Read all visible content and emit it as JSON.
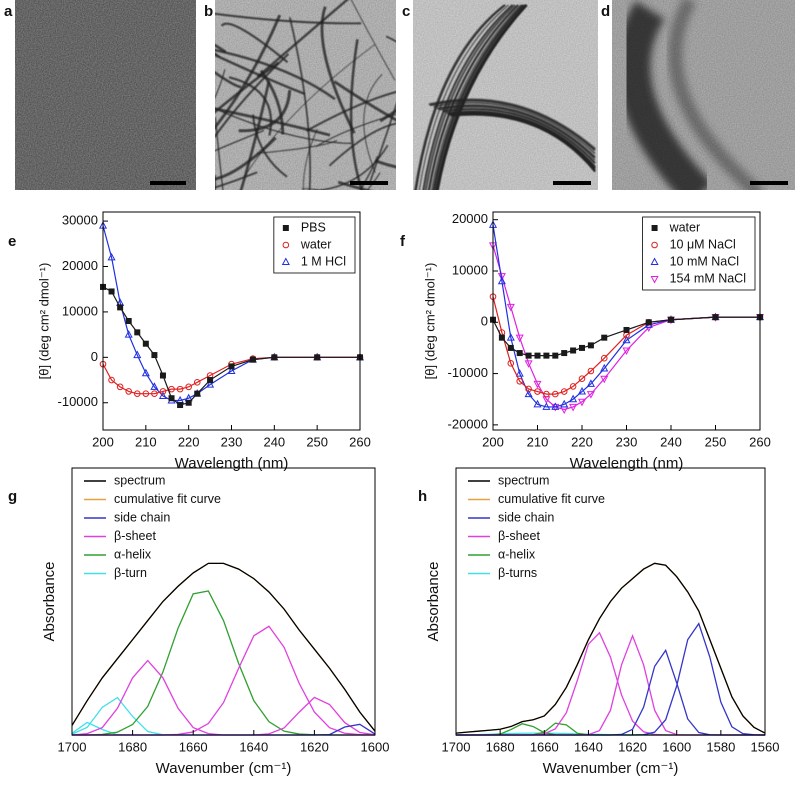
{
  "images": [
    {
      "label": "a"
    },
    {
      "label": "b"
    },
    {
      "label": "c"
    },
    {
      "label": "d"
    }
  ],
  "chart_data": [
    {
      "type": "line",
      "label": "e",
      "xlabel": "Wavelength (nm)",
      "ylabel": "[θ] (deg cm² dmol⁻¹)",
      "x": [
        200,
        202,
        204,
        206,
        208,
        210,
        212,
        214,
        216,
        218,
        220,
        222,
        225,
        230,
        235,
        240,
        250,
        260
      ],
      "series": [
        {
          "name": "PBS",
          "color": "#1a1a1a",
          "marker": "square",
          "values": [
            15500,
            14500,
            11000,
            8000,
            5500,
            3000,
            500,
            -4000,
            -9000,
            -10500,
            -10000,
            -8000,
            -5000,
            -2000,
            -500,
            0,
            0,
            0
          ]
        },
        {
          "name": "water",
          "color": "#e02020",
          "marker": "circle",
          "values": [
            -1500,
            -5000,
            -6500,
            -7500,
            -8000,
            -8000,
            -8000,
            -7500,
            -7000,
            -7000,
            -6500,
            -5500,
            -4000,
            -1500,
            -300,
            0,
            0,
            0
          ]
        },
        {
          "name": "1 M HCl",
          "color": "#2030e0",
          "marker": "triangle-up",
          "values": [
            29000,
            22000,
            12000,
            5000,
            500,
            -3500,
            -6500,
            -8500,
            -9500,
            -9500,
            -9000,
            -8000,
            -6000,
            -3000,
            -500,
            0,
            0,
            0
          ]
        }
      ],
      "xlim": [
        200,
        260
      ],
      "ylim": [
        -16000,
        32000
      ],
      "xticks": [
        200,
        210,
        220,
        230,
        240,
        250,
        260
      ],
      "yticks": [
        -10000,
        0,
        10000,
        20000,
        30000
      ],
      "legend": "upper right",
      "legend_frame": true
    },
    {
      "type": "line",
      "label": "f",
      "xlabel": "Wavelength (nm)",
      "ylabel": "[θ] (deg cm² dmol⁻¹)",
      "x": [
        200,
        202,
        204,
        206,
        208,
        210,
        212,
        214,
        216,
        218,
        220,
        222,
        225,
        230,
        235,
        240,
        250,
        260
      ],
      "series": [
        {
          "name": "water",
          "color": "#1a1a1a",
          "marker": "square",
          "values": [
            500,
            -3000,
            -5000,
            -6000,
            -6500,
            -6500,
            -6500,
            -6500,
            -6000,
            -5500,
            -5000,
            -4500,
            -3000,
            -1500,
            0,
            500,
            1000,
            1000
          ]
        },
        {
          "name": "10 μM NaCl",
          "color": "#e02020",
          "marker": "circle",
          "values": [
            5000,
            -2000,
            -8000,
            -11500,
            -13000,
            -13500,
            -14000,
            -14000,
            -13500,
            -12500,
            -11000,
            -9500,
            -7000,
            -2500,
            0,
            500,
            1000,
            1000
          ]
        },
        {
          "name": "10 mM NaCl",
          "color": "#2030e0",
          "marker": "triangle-up",
          "values": [
            19000,
            8000,
            -3000,
            -10000,
            -14000,
            -16000,
            -16500,
            -16500,
            -16000,
            -15000,
            -13500,
            -12000,
            -9000,
            -3500,
            -500,
            500,
            1000,
            1000
          ]
        },
        {
          "name": "154 mM NaCl",
          "color": "#e020e0",
          "marker": "triangle-down",
          "values": [
            15000,
            9000,
            3000,
            -3000,
            -8000,
            -12000,
            -15000,
            -16500,
            -17000,
            -16500,
            -15500,
            -14000,
            -11000,
            -5500,
            -1000,
            500,
            1000,
            1000
          ]
        }
      ],
      "xlim": [
        200,
        260
      ],
      "ylim": [
        -21000,
        21500
      ],
      "xticks": [
        200,
        210,
        220,
        230,
        240,
        250,
        260
      ],
      "yticks": [
        -20000,
        -10000,
        0,
        10000,
        20000
      ],
      "legend": "upper right",
      "legend_frame": true
    },
    {
      "type": "line",
      "label": "g",
      "xlabel": "Wavenumber (cm⁻¹)",
      "ylabel": "Absorbance",
      "x": [
        1700,
        1695,
        1690,
        1685,
        1680,
        1675,
        1670,
        1665,
        1660,
        1655,
        1650,
        1645,
        1640,
        1635,
        1630,
        1625,
        1620,
        1615,
        1610,
        1605,
        1600
      ],
      "series": [
        {
          "name": "spectrum",
          "color": "#000000",
          "values": [
            0.05,
            0.18,
            0.3,
            0.4,
            0.5,
            0.6,
            0.7,
            0.78,
            0.85,
            0.9,
            0.9,
            0.87,
            0.82,
            0.75,
            0.66,
            0.55,
            0.45,
            0.35,
            0.24,
            0.12,
            0.02
          ]
        },
        {
          "name": "cumulative fit curve",
          "color": "#e8a040",
          "values": [
            0.05,
            0.18,
            0.3,
            0.4,
            0.5,
            0.6,
            0.7,
            0.78,
            0.85,
            0.9,
            0.9,
            0.87,
            0.82,
            0.75,
            0.66,
            0.55,
            0.45,
            0.35,
            0.24,
            0.12,
            0.02
          ]
        },
        {
          "name": "side chain",
          "color": "#3535c8",
          "values": [
            [
              0,
              0,
              0,
              0,
              0,
              0,
              0,
              0,
              0,
              0,
              0,
              0,
              0,
              0,
              0,
              0,
              0,
              0.002,
              0.042,
              0.056,
              0.005
            ]
          ]
        },
        {
          "name": "β-sheet",
          "color": "#e040e0",
          "values": [
            [
              0,
              0,
              0,
              0,
              0,
              0,
              0,
              0.003,
              0.016,
              0.06,
              0.17,
              0.35,
              0.52,
              0.57,
              0.46,
              0.27,
              0.12,
              0.038,
              0.009,
              0.002,
              0
            ],
            [
              0,
              0.007,
              0.039,
              0.14,
              0.3,
              0.39,
              0.3,
              0.14,
              0.039,
              0.007,
              0,
              0,
              0,
              0,
              0,
              0,
              0,
              0,
              0,
              0,
              0
            ],
            [
              0,
              0,
              0,
              0,
              0,
              0,
              0,
              0,
              0,
              0,
              0,
              0,
              0,
              0.006,
              0.037,
              0.12,
              0.197,
              0.16,
              0.065,
              0.013,
              0.001
            ]
          ]
        },
        {
          "name": "α-helix",
          "color": "#30a030",
          "values": [
            [
              0,
              0,
              0.003,
              0.015,
              0.055,
              0.15,
              0.33,
              0.56,
              0.74,
              0.755,
              0.6,
              0.375,
              0.18,
              0.07,
              0.02,
              0.005,
              0.001,
              0,
              0,
              0,
              0
            ]
          ]
        },
        {
          "name": "β-turn",
          "color": "#40e0e8",
          "values": [
            [
              0.004,
              0.04,
              0.145,
              0.196,
              0.097,
              0.018,
              0.001,
              0,
              0,
              0,
              0,
              0,
              0,
              0,
              0,
              0,
              0,
              0,
              0,
              0,
              0
            ],
            [
              0.009,
              0.066,
              0.029,
              0.001,
              0,
              0,
              0,
              0,
              0,
              0,
              0,
              0,
              0,
              0,
              0,
              0,
              0,
              0,
              0,
              0,
              0
            ]
          ]
        }
      ],
      "xlim": [
        1700,
        1600
      ],
      "ylim": [
        0,
        1.4
      ],
      "xticks": [
        1700,
        1680,
        1660,
        1640,
        1620,
        1600
      ],
      "legend": "upper left",
      "legend_frame": false
    },
    {
      "type": "line",
      "label": "h",
      "xlabel": "Wavenumber (cm⁻¹)",
      "ylabel": "Absorbance",
      "x": [
        1700,
        1695,
        1690,
        1685,
        1680,
        1675,
        1670,
        1665,
        1660,
        1655,
        1650,
        1645,
        1640,
        1635,
        1630,
        1625,
        1620,
        1615,
        1610,
        1605,
        1600,
        1595,
        1590,
        1585,
        1580,
        1575,
        1570,
        1565,
        1560
      ],
      "series": [
        {
          "name": "spectrum",
          "color": "#000000",
          "values": [
            0.01,
            0.015,
            0.02,
            0.025,
            0.03,
            0.045,
            0.07,
            0.08,
            0.1,
            0.16,
            0.25,
            0.37,
            0.5,
            0.61,
            0.7,
            0.77,
            0.82,
            0.87,
            0.9,
            0.89,
            0.83,
            0.75,
            0.65,
            0.5,
            0.35,
            0.2,
            0.1,
            0.04,
            0.01
          ]
        },
        {
          "name": "cumulative fit curve",
          "color": "#e8a040",
          "values": [
            0.01,
            0.015,
            0.02,
            0.025,
            0.03,
            0.045,
            0.07,
            0.08,
            0.1,
            0.16,
            0.25,
            0.37,
            0.5,
            0.61,
            0.7,
            0.77,
            0.82,
            0.87,
            0.9,
            0.89,
            0.83,
            0.75,
            0.65,
            0.5,
            0.35,
            0.2,
            0.1,
            0.04,
            0.01
          ]
        },
        {
          "name": "side chain",
          "color": "#3535c8",
          "values": [
            [
              0,
              0,
              0,
              0,
              0,
              0,
              0,
              0,
              0,
              0,
              0,
              0,
              0,
              0,
              0,
              0.003,
              0.03,
              0.146,
              0.36,
              0.444,
              0.273,
              0.084,
              0.013,
              0.001,
              0,
              0,
              0,
              0,
              0
            ],
            [
              0,
              0,
              0,
              0,
              0,
              0,
              0,
              0,
              0,
              0,
              0,
              0,
              0,
              0,
              0,
              0,
              0,
              0.002,
              0.015,
              0.08,
              0.258,
              0.5,
              0.584,
              0.409,
              0.172,
              0.043,
              0.007,
              0.001,
              0
            ]
          ]
        },
        {
          "name": "β-sheet",
          "color": "#e040e0",
          "values": [
            [
              0,
              0,
              0,
              0,
              0,
              0,
              0,
              0,
              0.006,
              0.032,
              0.117,
              0.287,
              0.476,
              0.536,
              0.408,
              0.21,
              0.073,
              0.017,
              0.003,
              0,
              0,
              0,
              0,
              0,
              0,
              0,
              0,
              0,
              0
            ],
            [
              0,
              0,
              0,
              0,
              0,
              0,
              0,
              0,
              0,
              0,
              0,
              0,
              0.002,
              0.023,
              0.13,
              0.368,
              0.52,
              0.368,
              0.13,
              0.023,
              0.002,
              0,
              0,
              0,
              0,
              0,
              0,
              0,
              0
            ]
          ]
        },
        {
          "name": "α-helix",
          "color": "#30a030",
          "values": [
            [
              0,
              0,
              0,
              0,
              0.005,
              0.029,
              0.059,
              0.044,
              0.012,
              0.001,
              0,
              0,
              0,
              0,
              0,
              0,
              0,
              0,
              0,
              0,
              0,
              0,
              0,
              0,
              0,
              0,
              0,
              0,
              0
            ],
            [
              0,
              0,
              0,
              0,
              0,
              0,
              0,
              0.001,
              0.015,
              0.062,
              0.053,
              0.009,
              0.001,
              0,
              0,
              0,
              0,
              0,
              0,
              0,
              0,
              0,
              0,
              0,
              0,
              0,
              0,
              0,
              0
            ]
          ]
        },
        {
          "name": "β-turns",
          "color": "#40e0e8",
          "values": [
            [
              0,
              0,
              0.002,
              0.004,
              0.006,
              0.008,
              0.009,
              0.01,
              0.01,
              0.009,
              0.008,
              0.006,
              0.004,
              0.003,
              0.002,
              0.001,
              0,
              0,
              0,
              0,
              0,
              0,
              0,
              0,
              0,
              0,
              0,
              0,
              0
            ]
          ]
        }
      ],
      "xlim": [
        1700,
        1560
      ],
      "ylim": [
        0,
        1.4
      ],
      "xticks": [
        1700,
        1680,
        1660,
        1640,
        1620,
        1600,
        1580,
        1560
      ],
      "legend": "upper left",
      "legend_frame": false
    }
  ]
}
